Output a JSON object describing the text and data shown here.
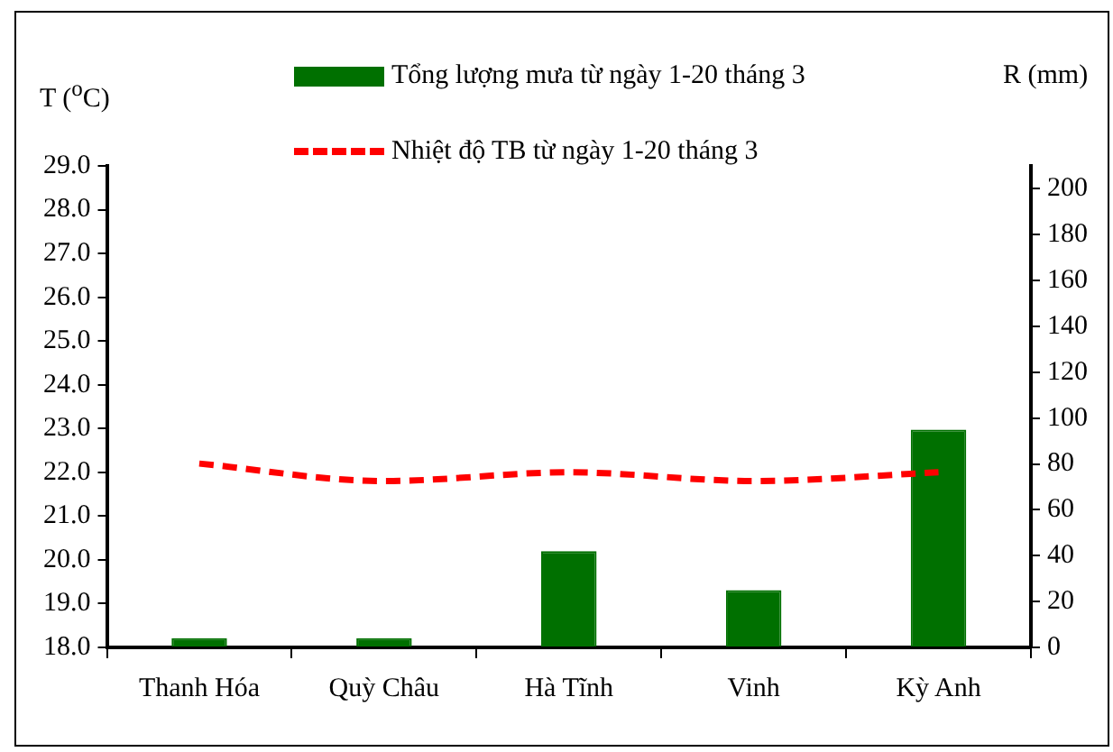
{
  "chart_data": {
    "type": "bar",
    "ylabel": "T ($^{o}$C)",
    "y2label": "R (mm)",
    "categories": [
      "Thanh Hóa",
      "Quỳ Châu",
      "Hà Tĩnh",
      "Vinh",
      "Kỳ Anh"
    ],
    "series": [
      {
        "name": "Tổng lượng mưa từ ngày  1-20 tháng 3",
        "axis": "y2",
        "color": "#007000",
        "values": [
          4,
          4,
          42,
          25,
          95
        ]
      },
      {
        "name": "Nhiệt độ TB từ ngày  1-20 tháng 3",
        "type": "line",
        "axis": "y",
        "color": "#ff0000",
        "line_style": "dashed",
        "marker": "none",
        "values": [
          22.2,
          21.8,
          22.0,
          21.8,
          22.0
        ]
      }
    ],
    "ylim": [
      18,
      29
    ],
    "yticks": [
      {
        "value": 18,
        "label": "18.0"
      },
      {
        "value": 19,
        "label": "19.0"
      },
      {
        "value": 20,
        "label": "20.0"
      },
      {
        "value": 21,
        "label": "21.0"
      },
      {
        "value": 22,
        "label": "22.0"
      },
      {
        "value": 23,
        "label": "23.0"
      },
      {
        "value": 24,
        "label": "24.0"
      },
      {
        "value": 25,
        "label": "25.0"
      },
      {
        "value": 26,
        "label": "26.0"
      },
      {
        "value": 27,
        "label": "27.0"
      },
      {
        "value": 28,
        "label": "28.0"
      },
      {
        "value": 29,
        "label": "29.0"
      }
    ],
    "y2lim": [
      0,
      210
    ],
    "y2ticks": [
      0,
      20,
      40,
      60,
      80,
      100,
      120,
      140,
      160,
      180,
      200
    ],
    "grid": false,
    "legend": "top"
  }
}
